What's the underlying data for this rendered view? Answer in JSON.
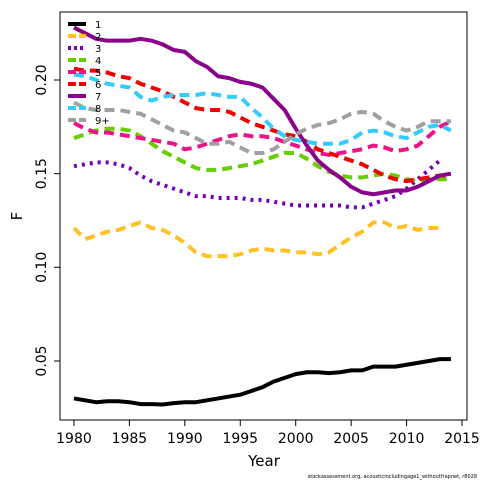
{
  "chart_data": {
    "type": "line",
    "y_label": "F",
    "x_label": "Year",
    "footer": "stockassessment.org, acousticincludingage1_withoutfrapnet, r8028",
    "x": [
      1980,
      1981,
      1982,
      1983,
      1984,
      1985,
      1986,
      1987,
      1988,
      1989,
      1990,
      1991,
      1992,
      1993,
      1994,
      1995,
      1996,
      1997,
      1998,
      1999,
      2000,
      2001,
      2002,
      2003,
      2004,
      2005,
      2006,
      2007,
      2008,
      2009,
      2010,
      2011,
      2012,
      2013,
      2014
    ],
    "xlim": [
      1978.74,
      2015.45
    ],
    "xticks": [
      1980,
      1985,
      1990,
      1995,
      2000,
      2005,
      2010,
      2015
    ],
    "ylim": [
      0.0185,
      0.2363
    ],
    "yticks": [
      {
        "value": 0.05,
        "label": "0.05"
      },
      {
        "value": 0.1,
        "label": "0.10"
      },
      {
        "value": 0.15,
        "label": "0.15"
      },
      {
        "value": 0.2,
        "label": "0.20"
      }
    ],
    "legend": "top-left",
    "series": [
      {
        "name": "1",
        "color": "#000000",
        "linestyle": "solid",
        "values": [
          0.03,
          0.029,
          0.028,
          0.0285,
          0.0285,
          0.028,
          0.027,
          0.027,
          0.0268,
          0.0275,
          0.028,
          0.028,
          0.029,
          0.03,
          0.031,
          0.032,
          0.034,
          0.036,
          0.039,
          0.041,
          0.043,
          0.044,
          0.044,
          0.0435,
          0.044,
          0.045,
          0.045,
          0.047,
          0.047,
          0.047,
          0.048,
          0.049,
          0.05,
          0.051,
          0.051
        ]
      },
      {
        "name": "2",
        "color": "#FFC125",
        "linestyle": "dashed",
        "values": [
          0.121,
          0.115,
          0.117,
          0.119,
          0.12,
          0.122,
          0.124,
          0.121,
          0.12,
          0.117,
          0.113,
          0.108,
          0.106,
          0.106,
          0.106,
          0.107,
          0.109,
          0.11,
          0.109,
          0.109,
          0.108,
          0.108,
          0.107,
          0.108,
          0.112,
          0.116,
          0.119,
          0.124,
          0.124,
          0.121,
          0.122,
          0.12,
          0.121,
          0.121,
          null
        ]
      },
      {
        "name": "3",
        "color": "#7400B8",
        "linestyle": "dotted",
        "values": [
          0.154,
          0.155,
          0.156,
          0.156,
          0.155,
          0.153,
          0.149,
          0.146,
          0.144,
          0.142,
          0.14,
          0.138,
          0.138,
          0.137,
          0.137,
          0.137,
          0.136,
          0.136,
          0.135,
          0.134,
          0.133,
          0.133,
          0.133,
          0.133,
          0.133,
          0.132,
          0.132,
          0.134,
          0.136,
          0.138,
          0.142,
          0.147,
          0.152,
          0.157,
          null
        ]
      },
      {
        "name": "4",
        "color": "#66CD00",
        "linestyle": "dashed",
        "values": [
          0.169,
          0.171,
          0.173,
          0.174,
          0.174,
          0.173,
          0.17,
          0.166,
          0.162,
          0.159,
          0.156,
          0.153,
          0.152,
          0.152,
          0.153,
          0.154,
          0.155,
          0.157,
          0.159,
          0.161,
          0.161,
          0.158,
          0.154,
          0.151,
          0.149,
          0.148,
          0.148,
          0.149,
          0.15,
          0.149,
          0.147,
          0.146,
          0.147,
          0.147,
          0.147
        ]
      },
      {
        "name": "5",
        "color": "#EE1289",
        "linestyle": "dashed",
        "values": [
          0.177,
          0.174,
          0.172,
          0.172,
          0.171,
          0.17,
          0.169,
          0.168,
          0.167,
          0.166,
          0.163,
          0.164,
          0.166,
          0.168,
          0.17,
          0.171,
          0.17,
          0.17,
          0.169,
          0.167,
          0.165,
          0.163,
          0.161,
          0.16,
          0.161,
          0.162,
          0.163,
          0.165,
          0.164,
          0.162,
          0.163,
          0.165,
          0.17,
          0.175,
          0.178
        ]
      },
      {
        "name": "6",
        "color": "#EE0000",
        "linestyle": "dashed",
        "values": [
          0.206,
          0.205,
          0.205,
          0.204,
          0.202,
          0.201,
          0.198,
          0.196,
          0.194,
          0.191,
          0.188,
          0.185,
          0.184,
          0.184,
          0.183,
          0.18,
          0.177,
          0.175,
          0.173,
          0.171,
          0.17,
          0.167,
          0.163,
          0.161,
          0.159,
          0.157,
          0.155,
          0.152,
          0.149,
          0.147,
          0.146,
          0.147,
          0.148,
          0.149,
          0.149
        ]
      },
      {
        "name": "7",
        "color": "#8B008B",
        "linestyle": "solid",
        "values": [
          0.228,
          0.225,
          0.222,
          0.221,
          0.221,
          0.221,
          0.222,
          0.221,
          0.219,
          0.216,
          0.215,
          0.21,
          0.207,
          0.202,
          0.201,
          0.199,
          0.198,
          0.196,
          0.19,
          0.184,
          0.174,
          0.165,
          0.157,
          0.152,
          0.148,
          0.143,
          0.14,
          0.139,
          0.14,
          0.141,
          0.141,
          0.143,
          0.146,
          0.149,
          0.15
        ]
      },
      {
        "name": "8",
        "color": "#33CCFF",
        "linestyle": "dashed",
        "values": [
          0.203,
          0.202,
          0.2,
          0.198,
          0.197,
          0.196,
          0.191,
          0.189,
          0.191,
          0.192,
          0.192,
          0.192,
          0.193,
          0.192,
          0.191,
          0.191,
          0.185,
          0.18,
          0.174,
          0.17,
          0.168,
          0.167,
          0.166,
          0.166,
          0.166,
          0.168,
          0.172,
          0.173,
          0.172,
          0.17,
          0.169,
          0.172,
          0.175,
          0.176,
          0.173
        ]
      },
      {
        "name": "9+",
        "color": "#A0A0A0",
        "linestyle": "dashed",
        "values": [
          0.188,
          0.185,
          0.184,
          0.184,
          0.184,
          0.183,
          0.182,
          0.179,
          0.176,
          0.173,
          0.172,
          0.169,
          0.166,
          0.166,
          0.167,
          0.164,
          0.161,
          0.161,
          0.163,
          0.167,
          0.171,
          0.174,
          0.176,
          0.177,
          0.179,
          0.182,
          0.183,
          0.182,
          0.178,
          0.175,
          0.173,
          0.175,
          0.178,
          0.178,
          0.178
        ]
      }
    ]
  }
}
